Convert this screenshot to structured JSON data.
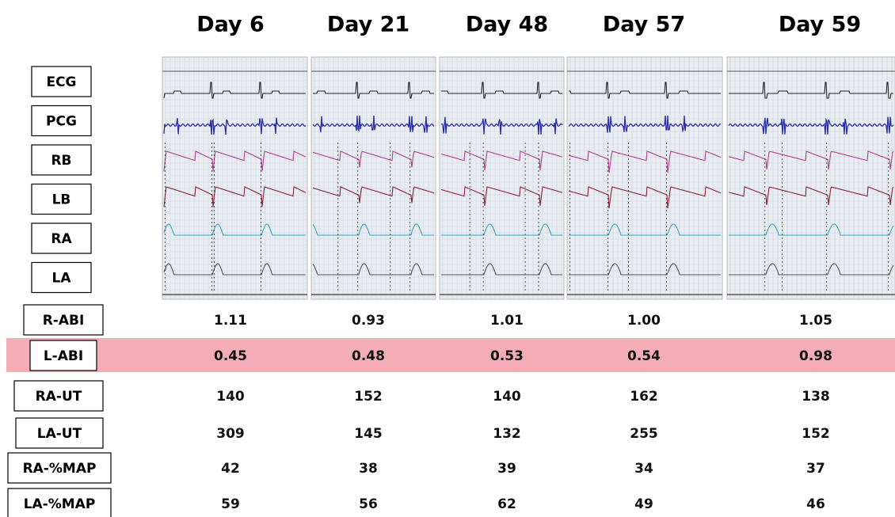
{
  "columns": [
    "Day 6",
    "Day 21",
    "Day 48",
    "Day 57",
    "Day 59"
  ],
  "traces": [
    "ECG",
    "PCG",
    "RB",
    "LB",
    "RA",
    "LA"
  ],
  "rows": [
    {
      "label": "R-ABI",
      "values": [
        "1.11",
        "0.93",
        "1.01",
        "1.00",
        "1.05"
      ]
    },
    {
      "label": "L-ABI",
      "values": [
        "0.45",
        "0.48",
        "0.53",
        "0.54",
        "0.98"
      ]
    },
    {
      "label": "RA-UT",
      "values": [
        "140",
        "152",
        "140",
        "162",
        "138"
      ]
    },
    {
      "label": "LA-UT",
      "values": [
        "309",
        "145",
        "132",
        "255",
        "152"
      ]
    },
    {
      "label": "RA-%MAP",
      "values": [
        "42",
        "38",
        "39",
        "34",
        "37"
      ]
    },
    {
      "label": "LA-%MAP",
      "values": [
        "59",
        "56",
        "62",
        "49",
        "46"
      ]
    }
  ]
}
